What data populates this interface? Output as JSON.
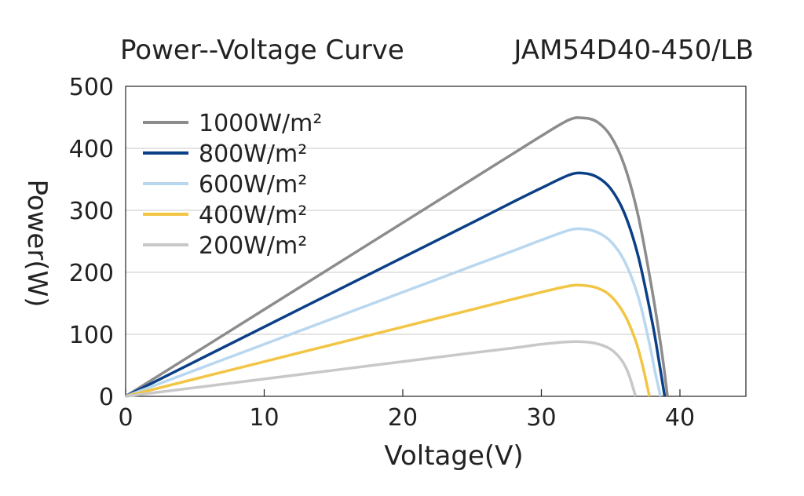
{
  "chart_data": {
    "type": "line",
    "title": "Power--Voltage Curve",
    "subtitle": "JAM54D40-450/LB",
    "xlabel": "Voltage(V)",
    "ylabel": "Power(W)",
    "xlim": [
      0,
      45
    ],
    "ylim": [
      0,
      500
    ],
    "xticks": [
      "0",
      "10",
      "20",
      "30",
      "40"
    ],
    "yticks": [
      "0",
      "100",
      "200",
      "300",
      "400",
      "500"
    ],
    "grid": "horizontal",
    "legend_position": "top-left",
    "series": [
      {
        "name": "1000W/m²",
        "color": "#8c8b8d",
        "x": [
          0,
          5,
          10,
          15,
          20,
          25,
          28,
          30,
          32,
          33,
          34,
          35,
          36,
          37,
          38,
          38.7,
          39.1
        ],
        "y": [
          0,
          70,
          140,
          210,
          280,
          350,
          392,
          420,
          446,
          449,
          443,
          420,
          372,
          290,
          170,
          70,
          0
        ]
      },
      {
        "name": "800W/m²",
        "color": "#0b3f86",
        "x": [
          0,
          5,
          10,
          15,
          20,
          25,
          28,
          30,
          32,
          33,
          34,
          35,
          36,
          37,
          38,
          38.5,
          38.9
        ],
        "y": [
          0,
          56,
          112,
          168,
          224,
          280,
          314,
          336,
          357,
          360,
          354,
          335,
          295,
          225,
          120,
          55,
          0
        ]
      },
      {
        "name": "600W/m²",
        "color": "#b9d7ef",
        "x": [
          0,
          5,
          10,
          15,
          20,
          25,
          28,
          30,
          32,
          33,
          34,
          35,
          36,
          37,
          37.8,
          38.2,
          38.6
        ],
        "y": [
          0,
          42,
          84,
          126,
          168,
          210,
          235,
          252,
          268,
          270,
          265,
          250,
          218,
          160,
          85,
          40,
          0
        ]
      },
      {
        "name": "400W/m²",
        "color": "#f2c544",
        "x": [
          0,
          5,
          10,
          15,
          20,
          25,
          28,
          30,
          32,
          33,
          34,
          35,
          36,
          36.8,
          37.3,
          37.8
        ],
        "y": [
          0,
          28,
          56,
          84,
          112,
          140,
          157,
          168,
          178,
          179,
          175,
          162,
          132,
          90,
          50,
          0
        ]
      },
      {
        "name": "200W/m²",
        "color": "#c8c8c8",
        "x": [
          0,
          5,
          10,
          15,
          20,
          25,
          28,
          30,
          32,
          33,
          34,
          35,
          35.8,
          36.3,
          36.8
        ],
        "y": [
          0,
          14,
          28,
          42,
          56,
          70,
          78,
          84,
          88,
          88,
          85,
          76,
          58,
          36,
          0
        ]
      }
    ]
  }
}
